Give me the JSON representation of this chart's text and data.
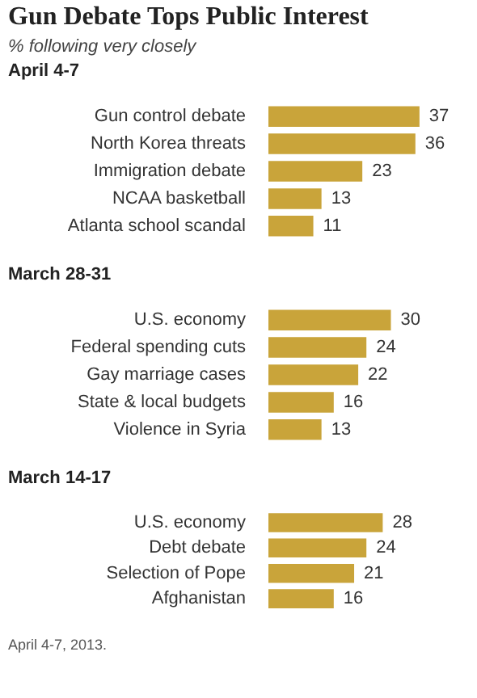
{
  "chart_data": [
    {
      "type": "bar",
      "orientation": "horizontal",
      "title": "Gun Debate Tops Public Interest",
      "subtitle": "% following very closely",
      "ylabel": "April 4-7",
      "categories": [
        "Gun control debate",
        "North Korea threats",
        "Immigration debate",
        "NCAA basketball",
        "Atlanta school scandal"
      ],
      "values": [
        37,
        36,
        23,
        13,
        11
      ],
      "color": "#c9a43a",
      "data_labels": true,
      "tick_labels": "y"
    },
    {
      "type": "bar",
      "orientation": "horizontal",
      "ylabel": "March 28-31",
      "categories": [
        "U.S. economy",
        "Federal spending cuts",
        "Gay marriage cases",
        "State & local budgets",
        "Violence in Syria"
      ],
      "values": [
        30,
        24,
        22,
        16,
        13
      ],
      "color": "#c9a43a",
      "data_labels": true,
      "tick_labels": "y"
    },
    {
      "type": "bar",
      "orientation": "horizontal",
      "ylabel": "March 14-17",
      "categories": [
        "U.S. economy",
        "Debt debate",
        "Selection of Pope",
        "Afghanistan"
      ],
      "values": [
        28,
        24,
        21,
        16
      ],
      "color": "#c9a43a",
      "data_labels": true,
      "tick_labels": "y",
      "annotations": [
        "April 4-7, 2013."
      ]
    }
  ]
}
